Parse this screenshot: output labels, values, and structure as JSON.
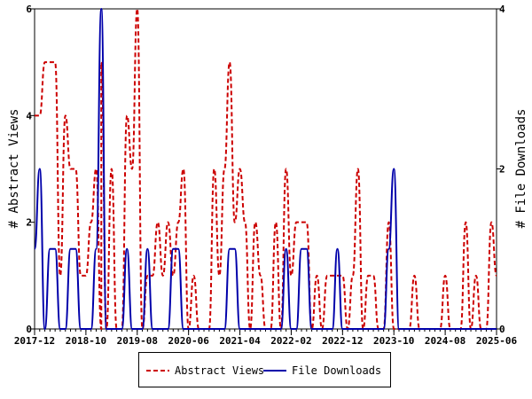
{
  "chart_data": {
    "type": "line",
    "xlabel": "",
    "ylabel": "# Abstract Views",
    "y2label": "# File Downloads",
    "ylim": [
      0,
      6
    ],
    "y2lim": [
      0,
      4
    ],
    "yticks": [
      "0",
      "2",
      "4",
      "6"
    ],
    "y2ticks": [
      "0",
      "2",
      "4"
    ],
    "x_range": [
      "2017-12",
      "2025-06"
    ],
    "x_ticks": [
      "2017-12",
      "2018-10",
      "2019-08",
      "2020-06",
      "2021-04",
      "2022-02",
      "2022-12",
      "2023-10",
      "2024-08",
      "2025-06"
    ],
    "legend_position": "bottom",
    "series": [
      {
        "name": "Abstract Views",
        "color": "#cc0000",
        "style": "dashed",
        "axis": "left",
        "points": [
          [
            "2017-12",
            4
          ],
          [
            "2018-01",
            4
          ],
          [
            "2018-02",
            5
          ],
          [
            "2018-03",
            5
          ],
          [
            "2018-04",
            5
          ],
          [
            "2018-05",
            1
          ],
          [
            "2018-06",
            4
          ],
          [
            "2018-07",
            3
          ],
          [
            "2018-08",
            3
          ],
          [
            "2018-09",
            1
          ],
          [
            "2018-10",
            1
          ],
          [
            "2018-11",
            2
          ],
          [
            "2018-12",
            3
          ],
          [
            "2018-13",
            0
          ],
          [
            "2019-01",
            5
          ],
          [
            "2019-02",
            0
          ],
          [
            "2019-03",
            3
          ],
          [
            "2019-04",
            0
          ],
          [
            "2019-05",
            0
          ],
          [
            "2019-06",
            4
          ],
          [
            "2019-07",
            3
          ],
          [
            "2019-08",
            6
          ],
          [
            "2019-09",
            0
          ],
          [
            "2019-10",
            1
          ],
          [
            "2019-11",
            1
          ],
          [
            "2019-12",
            2
          ],
          [
            "2020-01",
            1
          ],
          [
            "2020-02",
            2
          ],
          [
            "2020-03",
            1
          ],
          [
            "2020-04",
            2
          ],
          [
            "2020-05",
            3
          ],
          [
            "2020-06",
            0
          ],
          [
            "2020-07",
            1
          ],
          [
            "2020-08",
            0
          ],
          [
            "2020-09",
            0
          ],
          [
            "2020-10",
            0
          ],
          [
            "2020-11",
            3
          ],
          [
            "2020-12",
            1
          ],
          [
            "2021-01",
            3
          ],
          [
            "2021-02",
            5
          ],
          [
            "2021-03",
            2
          ],
          [
            "2021-04",
            3
          ],
          [
            "2021-05",
            2
          ],
          [
            "2021-06",
            0
          ],
          [
            "2021-07",
            2
          ],
          [
            "2021-08",
            1
          ],
          [
            "2021-09",
            0
          ],
          [
            "2021-10",
            0
          ],
          [
            "2021-11",
            2
          ],
          [
            "2021-12",
            0
          ],
          [
            "2022-01",
            3
          ],
          [
            "2022-02",
            1
          ],
          [
            "2022-03",
            2
          ],
          [
            "2022-04",
            2
          ],
          [
            "2022-05",
            2
          ],
          [
            "2022-06",
            0
          ],
          [
            "2022-07",
            1
          ],
          [
            "2022-08",
            0
          ],
          [
            "2022-09",
            1
          ],
          [
            "2022-10",
            1
          ],
          [
            "2022-11",
            1
          ],
          [
            "2022-12",
            1
          ],
          [
            "2023-01",
            0
          ],
          [
            "2023-02",
            1
          ],
          [
            "2023-03",
            3
          ],
          [
            "2023-04",
            0
          ],
          [
            "2023-05",
            1
          ],
          [
            "2023-06",
            1
          ],
          [
            "2023-07",
            0
          ],
          [
            "2023-08",
            0
          ],
          [
            "2023-09",
            2
          ],
          [
            "2023-10",
            0
          ],
          [
            "2023-11",
            0
          ],
          [
            "2023-12",
            0
          ],
          [
            "2024-01",
            0
          ],
          [
            "2024-02",
            1
          ],
          [
            "2024-03",
            0
          ],
          [
            "2024-04",
            0
          ],
          [
            "2024-05",
            0
          ],
          [
            "2024-06",
            0
          ],
          [
            "2024-07",
            0
          ],
          [
            "2024-08",
            1
          ],
          [
            "2024-09",
            0
          ],
          [
            "2024-10",
            0
          ],
          [
            "2024-11",
            0
          ],
          [
            "2024-12",
            2
          ],
          [
            "2025-01",
            0
          ],
          [
            "2025-02",
            1
          ],
          [
            "2025-03",
            0
          ],
          [
            "2025-04",
            0
          ],
          [
            "2025-05",
            2
          ],
          [
            "2025-06",
            1
          ]
        ]
      },
      {
        "name": "File Downloads",
        "color": "#0000aa",
        "style": "solid",
        "axis": "right",
        "points": [
          [
            "2017-12",
            1
          ],
          [
            "2018-01",
            2
          ],
          [
            "2018-02",
            0
          ],
          [
            "2018-03",
            1
          ],
          [
            "2018-04",
            1
          ],
          [
            "2018-05",
            0
          ],
          [
            "2018-06",
            0
          ],
          [
            "2018-07",
            1
          ],
          [
            "2018-08",
            1
          ],
          [
            "2018-09",
            0
          ],
          [
            "2018-10",
            0
          ],
          [
            "2018-11",
            0
          ],
          [
            "2018-12",
            1
          ],
          [
            "2019-01",
            4
          ],
          [
            "2019-02",
            0
          ],
          [
            "2019-03",
            0
          ],
          [
            "2019-04",
            0
          ],
          [
            "2019-05",
            0
          ],
          [
            "2019-06",
            1
          ],
          [
            "2019-07",
            0
          ],
          [
            "2019-08",
            0
          ],
          [
            "2019-09",
            0
          ],
          [
            "2019-10",
            1
          ],
          [
            "2019-11",
            0
          ],
          [
            "2019-12",
            0
          ],
          [
            "2020-01",
            0
          ],
          [
            "2020-02",
            0
          ],
          [
            "2020-03",
            1
          ],
          [
            "2020-04",
            1
          ],
          [
            "2020-05",
            0
          ],
          [
            "2020-06",
            0
          ],
          [
            "2020-07",
            0
          ],
          [
            "2020-08",
            0
          ],
          [
            "2020-09",
            0
          ],
          [
            "2020-10",
            0
          ],
          [
            "2020-11",
            0
          ],
          [
            "2020-12",
            0
          ],
          [
            "2021-01",
            0
          ],
          [
            "2021-02",
            1
          ],
          [
            "2021-03",
            1
          ],
          [
            "2021-04",
            0
          ],
          [
            "2021-05",
            0
          ],
          [
            "2021-06",
            0
          ],
          [
            "2021-07",
            0
          ],
          [
            "2021-08",
            0
          ],
          [
            "2021-09",
            0
          ],
          [
            "2021-10",
            0
          ],
          [
            "2021-11",
            0
          ],
          [
            "2021-12",
            0
          ],
          [
            "2022-01",
            1
          ],
          [
            "2022-02",
            0
          ],
          [
            "2022-03",
            0
          ],
          [
            "2022-04",
            1
          ],
          [
            "2022-05",
            1
          ],
          [
            "2022-06",
            0
          ],
          [
            "2022-07",
            0
          ],
          [
            "2022-08",
            0
          ],
          [
            "2022-09",
            0
          ],
          [
            "2022-10",
            0
          ],
          [
            "2022-11",
            1
          ],
          [
            "2022-12",
            0
          ],
          [
            "2023-01",
            0
          ],
          [
            "2023-02",
            0
          ],
          [
            "2023-03",
            0
          ],
          [
            "2023-04",
            0
          ],
          [
            "2023-05",
            0
          ],
          [
            "2023-06",
            0
          ],
          [
            "2023-07",
            0
          ],
          [
            "2023-08",
            0
          ],
          [
            "2023-09",
            1
          ],
          [
            "2023-10",
            2
          ],
          [
            "2023-11",
            0
          ],
          [
            "2023-12",
            0
          ],
          [
            "2024-01",
            0
          ],
          [
            "2024-02",
            0
          ],
          [
            "2024-03",
            0
          ],
          [
            "2024-04",
            0
          ],
          [
            "2024-05",
            0
          ],
          [
            "2024-06",
            0
          ],
          [
            "2024-07",
            0
          ],
          [
            "2024-08",
            0
          ],
          [
            "2024-09",
            0
          ],
          [
            "2024-10",
            0
          ],
          [
            "2024-11",
            0
          ],
          [
            "2024-12",
            0
          ],
          [
            "2025-01",
            0
          ],
          [
            "2025-02",
            0
          ],
          [
            "2025-03",
            0
          ],
          [
            "2025-04",
            0
          ],
          [
            "2025-05",
            0
          ],
          [
            "2025-06",
            0
          ]
        ]
      }
    ]
  },
  "legend": {
    "abstract_views": "Abstract Views",
    "file_downloads": "File Downloads"
  }
}
